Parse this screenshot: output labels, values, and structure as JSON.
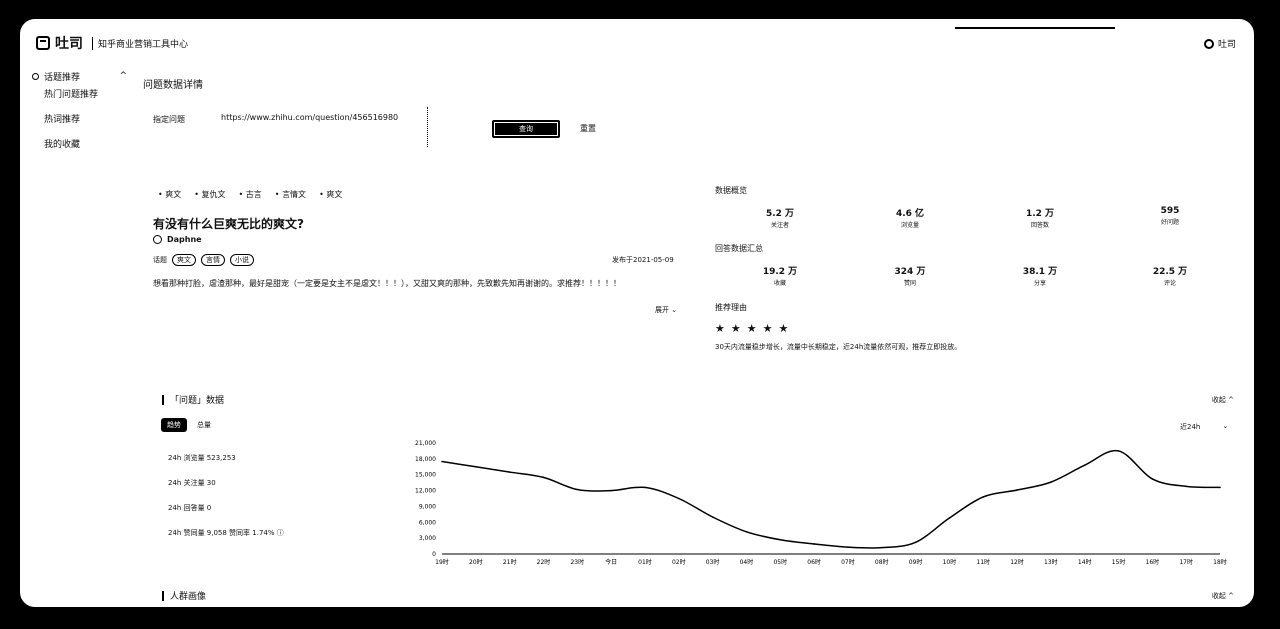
{
  "header": {
    "logo_text": "吐司",
    "subtitle": "知乎商业营销工具中心",
    "user_name": "吐司"
  },
  "sidebar": {
    "section": "话题推荐",
    "items": [
      "热门问题推荐",
      "热词推荐",
      "我的收藏"
    ]
  },
  "page": {
    "title": "问题数据详情",
    "field_label": "指定问题",
    "url_value": "https://www.zhihu.com/question/456516980",
    "query_button": "查询",
    "reset_link": "重置"
  },
  "question": {
    "tags": [
      "爽文",
      "复仇文",
      "古言",
      "言情文",
      "爽文"
    ],
    "title": "有没有什么巨爽无比的爽文?",
    "author": "Daphne",
    "topic_label": "话题",
    "topics": [
      "爽文",
      "言情",
      "小说"
    ],
    "pubdate": "发布于2021-05-09",
    "description": "想看那种打脸，虐渣那种，最好是甜宠（一定要是女主不是虐文！！！），又甜又爽的那种，先致歉先知再谢谢的。求推荐！！！！！",
    "expand_label": "展开 ⌄"
  },
  "overview": {
    "title": "数据概览",
    "stats": [
      {
        "value": "5.2 万",
        "label": "关注者"
      },
      {
        "value": "4.6 亿",
        "label": "浏览量"
      },
      {
        "value": "1.2 万",
        "label": "回答数"
      },
      {
        "value": "595",
        "label": "好问题"
      }
    ]
  },
  "answers_summary": {
    "title": "回答数据汇总",
    "stats": [
      {
        "value": "19.2 万",
        "label": "收藏"
      },
      {
        "value": "324 万",
        "label": "赞同"
      },
      {
        "value": "38.1 万",
        "label": "分享"
      },
      {
        "value": "22.5 万",
        "label": "评论"
      }
    ]
  },
  "recommend": {
    "title": "推荐理由",
    "stars": 5,
    "text": "30天内流量稳步增长，流量中长期稳定，近24h流量依然可观，推荐立即投放。"
  },
  "question_data": {
    "title": "「问题」数据",
    "collapse": "收起 ^",
    "tabs": [
      "趋势",
      "总量"
    ],
    "range": "近24h",
    "range_chevron": "⌄",
    "metrics": [
      "24h 浏览量 523,253",
      "24h 关注量 30",
      "24h 回答量 0",
      "24h 赞同量 9,058 赞同率 1.74% ⓘ"
    ]
  },
  "people_section": {
    "title": "人群画像",
    "collapse": "收起 ^"
  },
  "chart_data": {
    "type": "line",
    "y_ticks": [
      "21,000",
      "18,000",
      "15,000",
      "12,000",
      "9,000",
      "6,000",
      "3,000",
      "0"
    ],
    "ylim": [
      0,
      21000
    ],
    "x": [
      "19时",
      "20时",
      "21时",
      "22时",
      "23时",
      "今日",
      "01时",
      "02时",
      "03时",
      "04时",
      "05时",
      "06时",
      "07时",
      "08时",
      "09时",
      "10时",
      "11时",
      "12时",
      "13时",
      "14时",
      "15时",
      "16时",
      "17时",
      "18时"
    ],
    "values": [
      17500,
      16500,
      15500,
      14500,
      12200,
      12000,
      12600,
      10500,
      7000,
      4200,
      2700,
      1900,
      1300,
      1200,
      2200,
      6800,
      10800,
      12100,
      13600,
      16800,
      19500,
      14200,
      12800,
      12600
    ]
  }
}
